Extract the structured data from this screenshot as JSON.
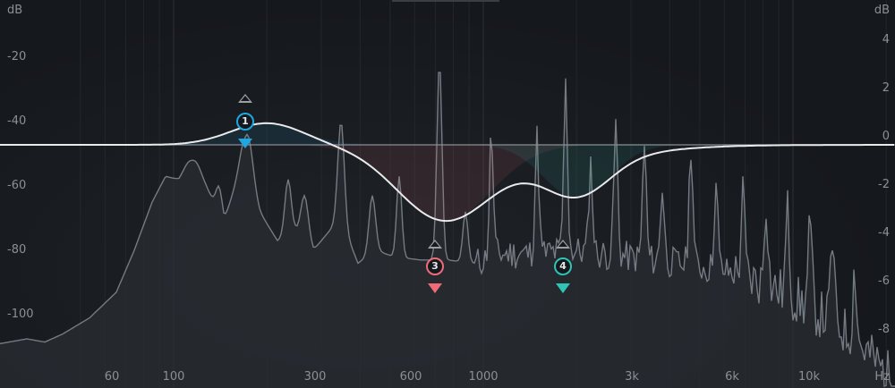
{
  "analyzer": {
    "db_unit": "dB",
    "hz_unit": "Hz",
    "db_labels": [
      "-20",
      "-40",
      "-60",
      "-80",
      "-100"
    ],
    "gain_labels": [
      "4",
      "2",
      "0",
      "-2",
      "-4",
      "-6",
      "-8"
    ],
    "freq_labels": [
      "60",
      "100",
      "300",
      "600",
      "1000",
      "3k",
      "6k",
      "10k"
    ]
  },
  "bands": [
    {
      "id": "1",
      "freq_hz": 200,
      "gain_db": 0.9,
      "color": "#1ea7e1"
    },
    {
      "id": "3",
      "freq_hz": 750,
      "gain_db": -3.2,
      "color": "#f06b7a"
    },
    {
      "id": "4",
      "freq_hz": 2000,
      "gain_db": -2.2,
      "color": "#2ec4b6"
    }
  ],
  "colors": {
    "curve": "#e8eaec",
    "spectrum_line": "#7e858c",
    "spectrum_fill": "#2a2e33",
    "grid": "#2d3136",
    "zero_line": "#8a8f95"
  }
}
